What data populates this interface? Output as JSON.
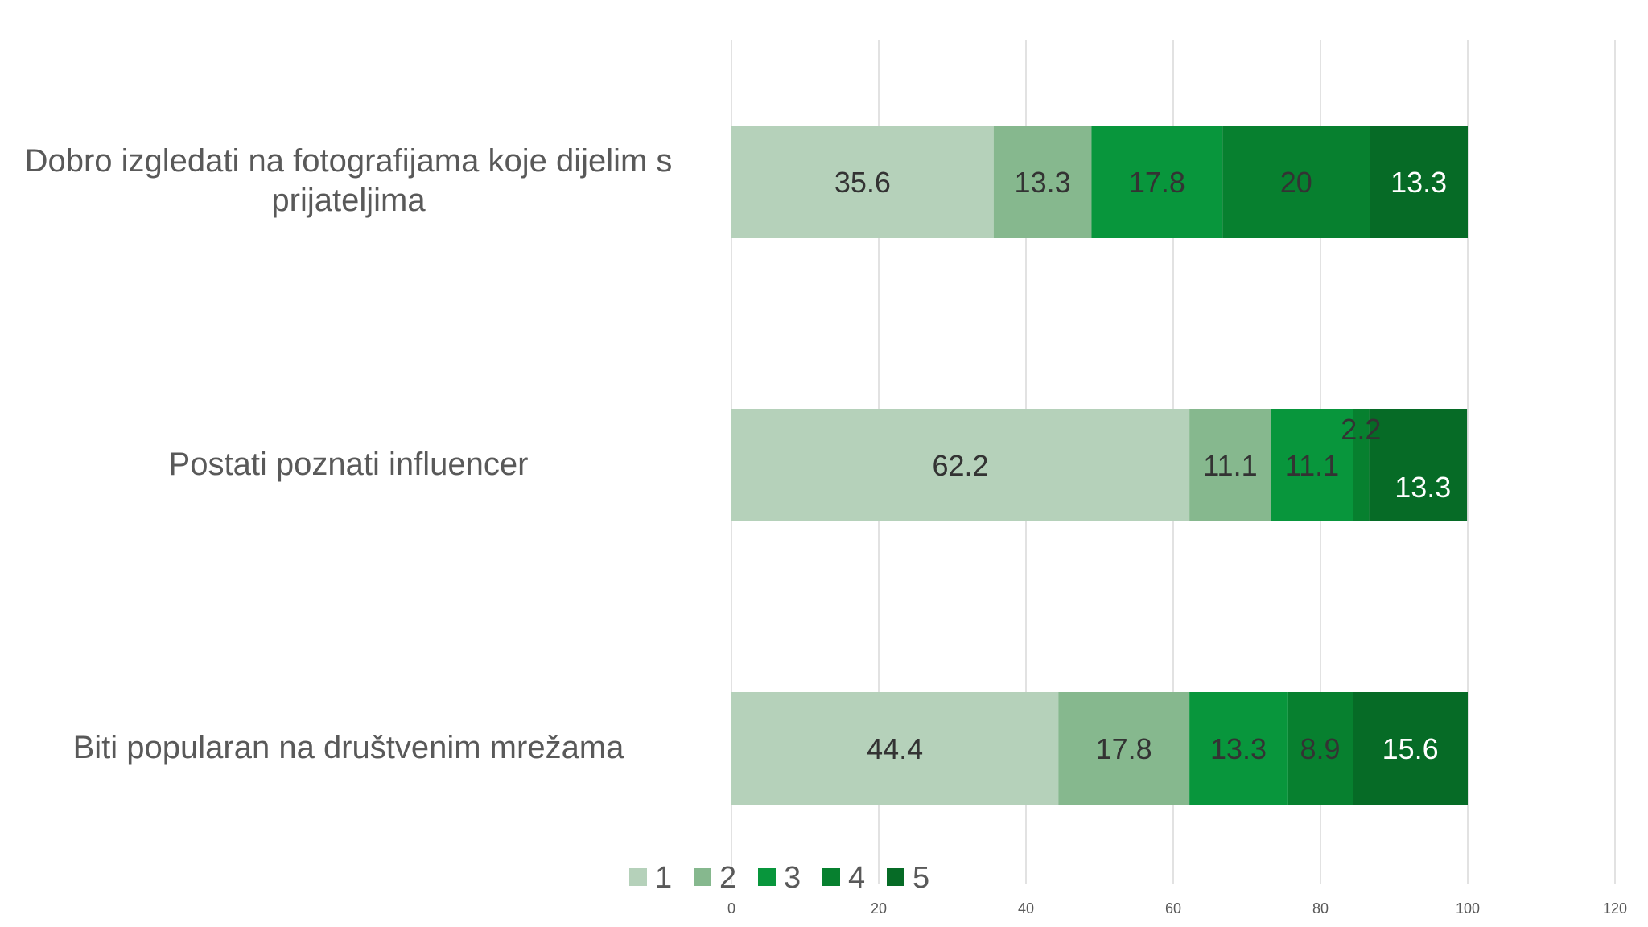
{
  "chart_data": {
    "type": "bar",
    "orientation": "horizontal",
    "stacked": true,
    "categories": [
      "Dobro izgledati na fotografijama koje dijelim s prijateljima",
      "Postati poznati influencer",
      "Biti popularan na društvenim mrežama"
    ],
    "series": [
      {
        "name": "1",
        "color": "#B5D1BA",
        "values": [
          35.6,
          62.2,
          44.4
        ]
      },
      {
        "name": "2",
        "color": "#86B88E",
        "values": [
          13.3,
          11.1,
          17.8
        ]
      },
      {
        "name": "3",
        "color": "#08963C",
        "values": [
          17.8,
          11.1,
          13.3
        ]
      },
      {
        "name": "4",
        "color": "#07802F",
        "values": [
          20,
          2.2,
          8.9
        ]
      },
      {
        "name": "5",
        "color": "#066B26",
        "values": [
          13.3,
          13.3,
          15.6
        ]
      }
    ],
    "data_label_colors": [
      "#333333",
      "#333333",
      "#333333",
      "#333333",
      "#ffffff"
    ],
    "xlim": [
      0,
      120
    ],
    "xticks": [
      "0",
      "20",
      "40",
      "60",
      "80",
      "100",
      "120"
    ],
    "grid": true,
    "legend_position": "bottom"
  }
}
